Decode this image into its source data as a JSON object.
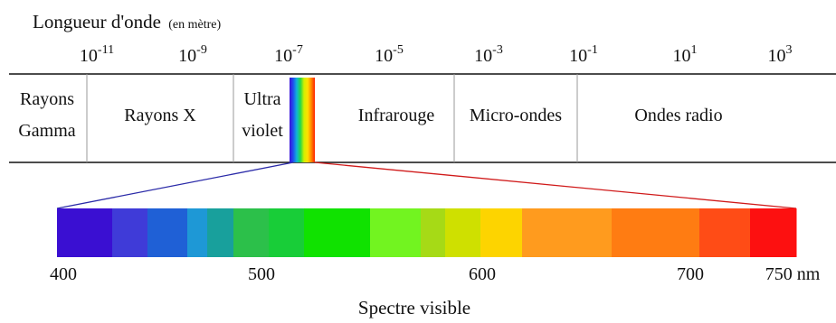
{
  "header": {
    "title": "Longueur d'onde",
    "unit_note": "(en mètre)"
  },
  "scale": {
    "ticks": [
      {
        "base": "10",
        "exp": "-11"
      },
      {
        "base": "10",
        "exp": "-9"
      },
      {
        "base": "10",
        "exp": "-7"
      },
      {
        "base": "10",
        "exp": "-5"
      },
      {
        "base": "10",
        "exp": "-3"
      },
      {
        "base": "10",
        "exp": "-1"
      },
      {
        "base": "10",
        "exp": "1"
      },
      {
        "base": "10",
        "exp": "3"
      }
    ]
  },
  "bands": [
    {
      "lines": [
        "Rayons",
        "Gamma"
      ]
    },
    {
      "lines": [
        "Rayons X"
      ]
    },
    {
      "lines": [
        "Ultra",
        "violet"
      ]
    },
    {
      "lines": [
        "Infrarouge"
      ]
    },
    {
      "lines": [
        "Micro-ondes"
      ]
    },
    {
      "lines": [
        "Ondes radio"
      ]
    }
  ],
  "spectrum": {
    "tick_labels": [
      "400",
      "500",
      "600",
      "700",
      "750 nm"
    ],
    "title": "Spectre visible",
    "colors": [
      "#3a0fd2",
      "#3f3bd8",
      "#1f60d6",
      "#1e98d6",
      "#18a09c",
      "#2cc04a",
      "#18cd38",
      "#10e200",
      "#72f420",
      "#a6da16",
      "#cfe000",
      "#fdd400",
      "#ff9b1e",
      "#ff7c12",
      "#ff4c16",
      "#fd1010"
    ],
    "strip_colors": [
      "#3b0fd9",
      "#1f4ff0",
      "#10b4d8",
      "#22d84a",
      "#d0f000",
      "#ffe000",
      "#ff8a00",
      "#ff2200"
    ],
    "zoom_left_color": "#2a2aa8",
    "zoom_right_color": "#d01a1a"
  }
}
